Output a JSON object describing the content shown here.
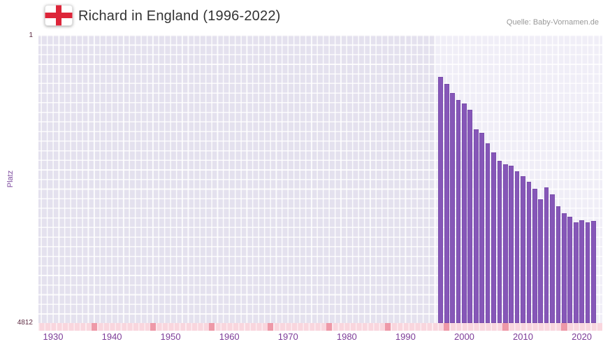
{
  "header": {
    "title": "Richard in England (1996-2022)",
    "source": "Quelle: Baby-Vornamen.de",
    "flag": "england-flag"
  },
  "chart_data": {
    "type": "bar",
    "title": "Richard in England (1996-2022)",
    "ylabel": "Platz",
    "y_axis": {
      "top_label": "1",
      "bottom_label": "4812",
      "min": 1,
      "max": 4812,
      "inverted": true
    },
    "x_range": [
      1927.5,
      2023.5
    ],
    "x_ticks": [
      "1930",
      "1940",
      "1950",
      "1960",
      "1970",
      "1980",
      "1990",
      "2000",
      "2010",
      "2020"
    ],
    "highlight_range": [
      1995,
      2023.5
    ],
    "years": [
      1996,
      1997,
      1998,
      1999,
      2000,
      2001,
      2002,
      2003,
      2004,
      2005,
      2006,
      2007,
      2008,
      2009,
      2010,
      2011,
      2012,
      2013,
      2014,
      2015,
      2016,
      2017,
      2018,
      2019,
      2020,
      2021,
      2022
    ],
    "ranks": [
      700,
      820,
      970,
      1090,
      1140,
      1250,
      1580,
      1640,
      1810,
      1960,
      2100,
      2160,
      2190,
      2280,
      2360,
      2450,
      2570,
      2750,
      2550,
      2660,
      2860,
      2980,
      3040,
      3130,
      3090,
      3130,
      3110
    ],
    "timeline_markers": [
      1937,
      1947,
      1957,
      1967,
      1977,
      1987,
      1997,
      2007,
      2017
    ],
    "legend": "none",
    "grid": "on",
    "colors": {
      "bar": "#8657b8",
      "bar_border": "#6f43a0",
      "plot_bg": "#e4e1ee",
      "highlight_bg": "#f0eef7",
      "strip_bg": "#f9d6de",
      "strip_marker": "#ee99a8",
      "x_tick_color": "#7d3c98",
      "y_tick_color": "#5d2a42",
      "ylabel_color": "#7d4b9e"
    }
  }
}
